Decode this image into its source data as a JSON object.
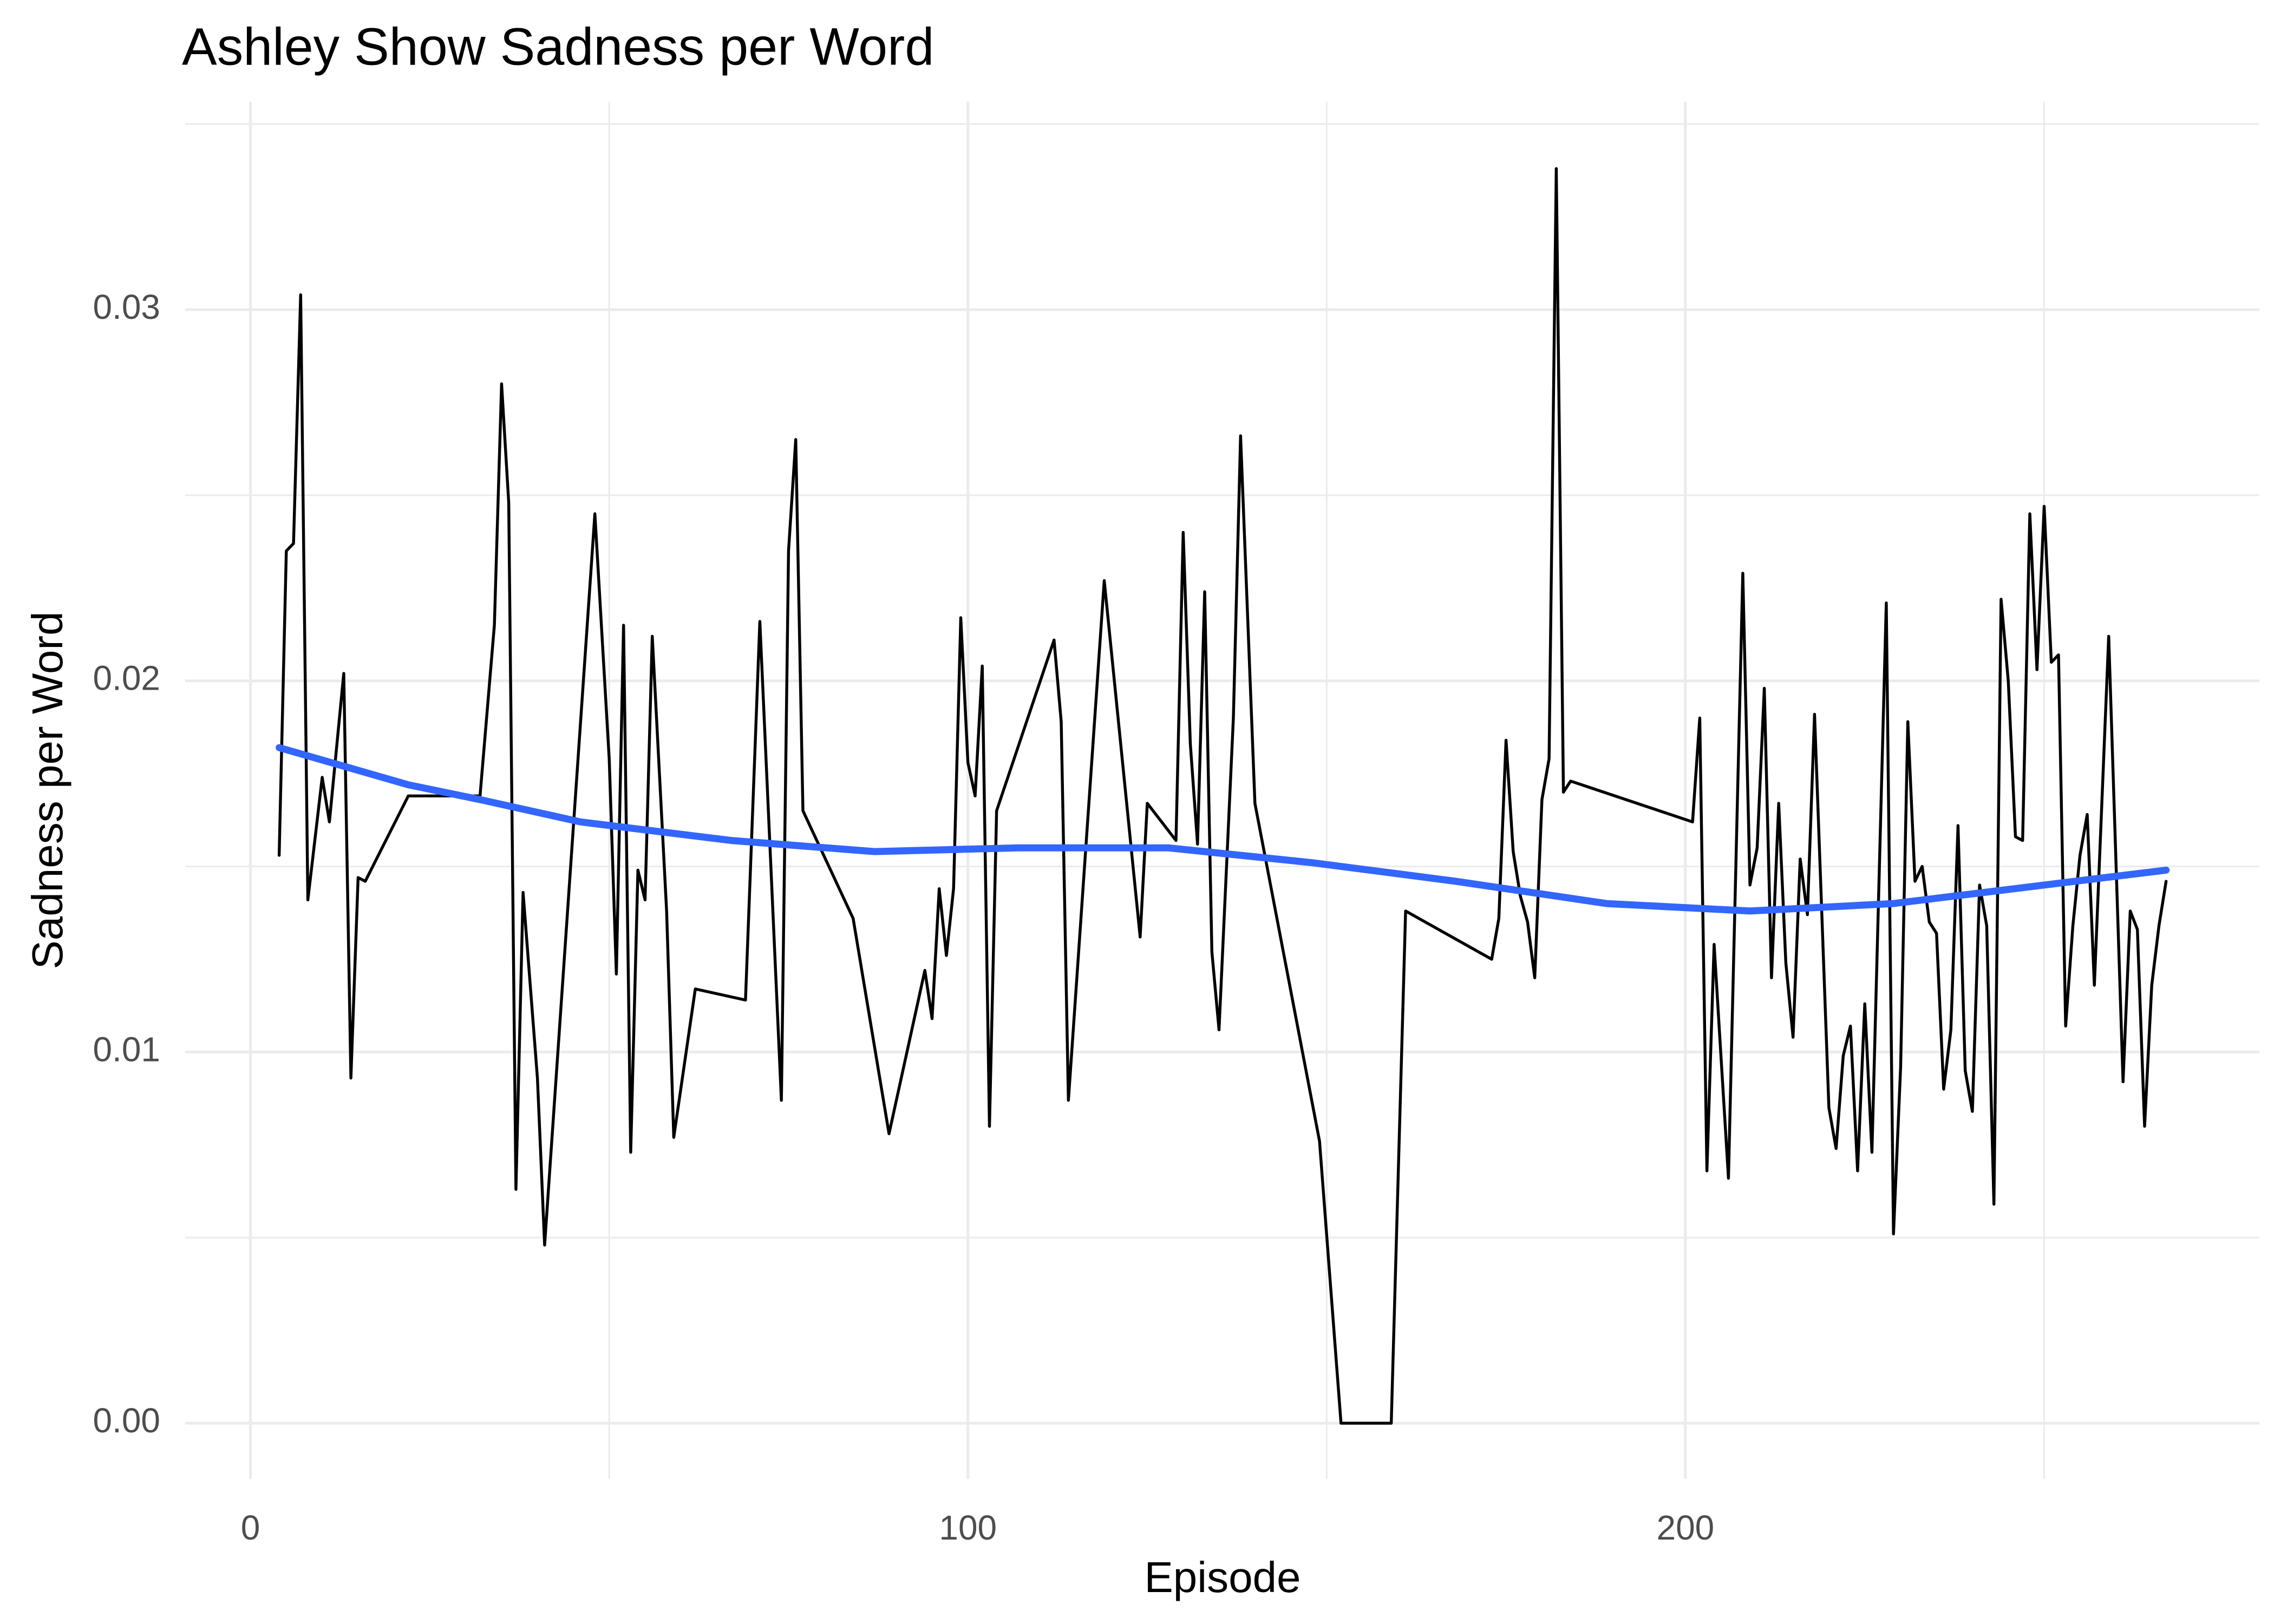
{
  "chart_data": {
    "type": "line",
    "title": "Ashley Show Sadness per Word",
    "xlabel": "Episode",
    "ylabel": "Sadness per Word",
    "xlim": [
      -9.1,
      280
    ],
    "ylim": [
      -0.0015,
      0.0356
    ],
    "xticks": [
      0,
      100,
      200
    ],
    "yticks": [
      {
        "value": 0,
        "label": "0.00"
      },
      0.01,
      0.02,
      0.03
    ],
    "xminor": [
      50,
      150,
      250
    ],
    "yminor": [
      0.005,
      0.015,
      0.025,
      0.035
    ],
    "grid": true,
    "series": [
      {
        "color": "#000000",
        "x": [
          4,
          5,
          6,
          7,
          8,
          10,
          11,
          13,
          14,
          15,
          16,
          22,
          32,
          34,
          35,
          36,
          37,
          38,
          40,
          41,
          48,
          50,
          51,
          52,
          53,
          54,
          55,
          56,
          58,
          59,
          62,
          69,
          71,
          74,
          75,
          76,
          77,
          84,
          89,
          94,
          95,
          96,
          97,
          98,
          99,
          100,
          101,
          102,
          103,
          104,
          112,
          113,
          114,
          119,
          124,
          125,
          129,
          130,
          131,
          132,
          133,
          134,
          135,
          137,
          138,
          140,
          149,
          152,
          159,
          161,
          173,
          174,
          175,
          176,
          177,
          178,
          179,
          180,
          181,
          182,
          183,
          184,
          201,
          202,
          203,
          204,
          206,
          208,
          209,
          210,
          211,
          212,
          213,
          214,
          215,
          216,
          217,
          218,
          220,
          221,
          222,
          223,
          224,
          225,
          226,
          228,
          229,
          230,
          231,
          232,
          233,
          234,
          235,
          236,
          237,
          238,
          239,
          240,
          241,
          242,
          243,
          244,
          245,
          246,
          247,
          248,
          249,
          250,
          251,
          252,
          253,
          254,
          255,
          256,
          257,
          259,
          261,
          262,
          263,
          264,
          265,
          266,
          267
        ],
        "values": [
          0.0153,
          0.0235,
          0.0237,
          0.0304,
          0.0141,
          0.0174,
          0.0162,
          0.0202,
          0.0093,
          0.0147,
          0.0146,
          0.0169,
          0.0169,
          0.0215,
          0.028,
          0.0248,
          0.0063,
          0.0143,
          0.0093,
          0.0048,
          0.0245,
          0.0179,
          0.0121,
          0.0215,
          0.0073,
          0.0149,
          0.0141,
          0.0212,
          0.0138,
          0.0077,
          0.0117,
          0.0114,
          0.0216,
          0.0087,
          0.0235,
          0.0265,
          0.0165,
          0.0136,
          0.0078,
          0.0122,
          0.0109,
          0.0144,
          0.0126,
          0.0144,
          0.0217,
          0.0178,
          0.0169,
          0.0204,
          0.008,
          0.0165,
          0.0211,
          0.0189,
          0.0087,
          0.0227,
          0.0131,
          0.0167,
          0.0157,
          0.024,
          0.0183,
          0.0156,
          0.0224,
          0.0127,
          0.0106,
          0.019,
          0.0266,
          0.0167,
          0.0076,
          0,
          0,
          0.0138,
          0.0125,
          0.0136,
          0.0184,
          0.0154,
          0.0142,
          0.0135,
          0.012,
          0.0168,
          0.0179,
          0.0338,
          0.017,
          0.0173,
          0.0162,
          0.019,
          0.0068,
          0.0129,
          0.0066,
          0.0229,
          0.0145,
          0.0155,
          0.0198,
          0.012,
          0.0167,
          0.0124,
          0.0104,
          0.0152,
          0.0137,
          0.0191,
          0.0085,
          0.0074,
          0.0099,
          0.0107,
          0.0068,
          0.0113,
          0.0073,
          0.0221,
          0.0051,
          0.0096,
          0.0189,
          0.0146,
          0.015,
          0.0135,
          0.0132,
          0.009,
          0.0106,
          0.0161,
          0.0095,
          0.0084,
          0.0145,
          0.0134,
          0.0059,
          0.0222,
          0.02,
          0.0158,
          0.0157,
          0.0245,
          0.0203,
          0.0247,
          0.0205,
          0.0207,
          0.0107,
          0.0134,
          0.0153,
          0.0164,
          0.0118,
          0.0212,
          0.0092,
          0.0138,
          0.0133,
          0.008,
          0.0118,
          0.0134,
          0.0146
        ]
      },
      {
        "color": "#3366FF",
        "x": [
          4,
          22,
          32,
          46,
          67,
          87,
          107,
          128,
          148,
          168,
          189,
          209,
          229,
          250,
          267
        ],
        "values": [
          0.0182,
          0.0172,
          0.0168,
          0.0162,
          0.0157,
          0.0154,
          0.0155,
          0.0155,
          0.0151,
          0.0146,
          0.014,
          0.0138,
          0.014,
          0.0145,
          0.0149
        ]
      }
    ]
  }
}
